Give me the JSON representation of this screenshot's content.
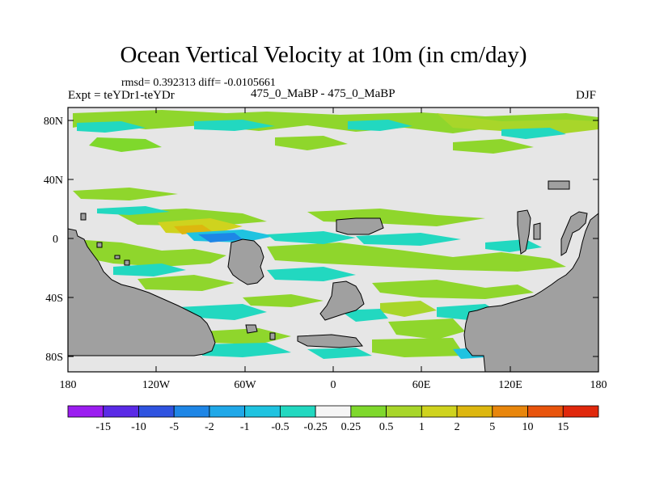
{
  "title": "Ocean Vertical Velocity at 10m (in cm/day)",
  "stats": "rmsd= 0.392313 diff= -0.0105661",
  "expt": "Expt = teYDr1-teYDr",
  "case": "475_0_MaBP - 475_0_MaBP",
  "season": "DJF",
  "y_ticks": [
    "80N",
    "40N",
    "0",
    "40S",
    "80S"
  ],
  "x_ticks": [
    "180",
    "120W",
    "60W",
    "0",
    "60E",
    "120E",
    "180"
  ],
  "colorbar": {
    "labels": [
      "-15",
      "-10",
      "-5",
      "-2",
      "-1",
      "-0.5",
      "-0.25",
      "0.25",
      "0.5",
      "1",
      "2",
      "5",
      "10",
      "15"
    ],
    "colors": [
      "#9b1df0",
      "#5a2ae6",
      "#2f53e0",
      "#1e86e6",
      "#20a8e8",
      "#1fc3e0",
      "#22d8c0",
      "#f5f5f5",
      "#7fd82c",
      "#a8d62a",
      "#cfd31e",
      "#ddb70f",
      "#e8860c",
      "#e8540c",
      "#e0280c"
    ]
  },
  "land_color": "#a0a0a0",
  "ocean_color": "#e6e6e6"
}
